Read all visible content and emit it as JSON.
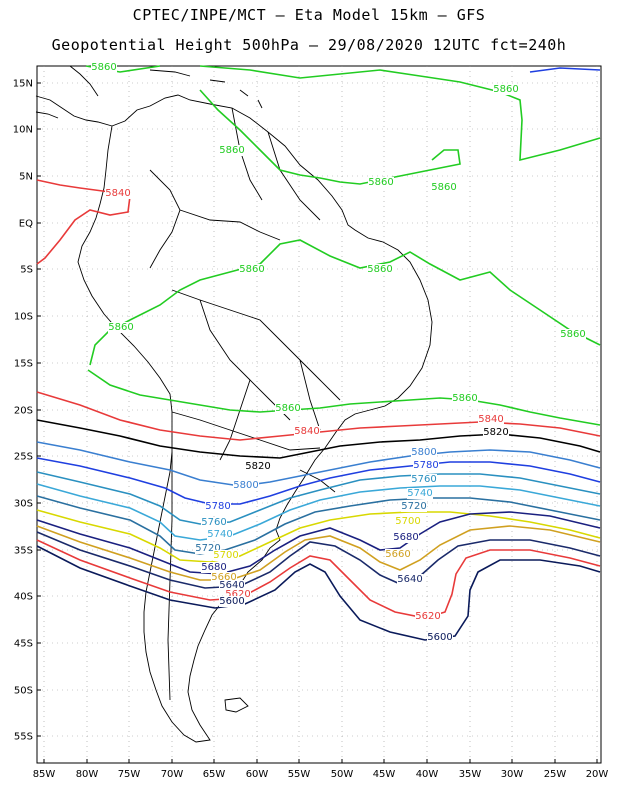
{
  "title_line1": "CPTEC/INPE/MCT —  Eta Model 15km — GFS",
  "title_line2": "Geopotential Height 500hPa — 29/08/2020 12UTC fct=240h",
  "lat_labels": [
    "15N",
    "10N",
    "5N",
    "EQ",
    "5S",
    "10S",
    "15S",
    "20S",
    "25S",
    "30S",
    "35S",
    "40S",
    "45S",
    "50S",
    "55S"
  ],
  "lon_labels": [
    "85W",
    "80W",
    "75W",
    "70W",
    "65W",
    "60W",
    "55W",
    "50W",
    "45W",
    "40W",
    "35W",
    "30W",
    "25W",
    "20W"
  ],
  "contour_labels": [
    {
      "text": "5860",
      "color": "#22cc22"
    },
    {
      "text": "5860",
      "color": "#22cc22"
    },
    {
      "text": "5860",
      "color": "#22cc22"
    },
    {
      "text": "5860",
      "color": "#22cc22"
    },
    {
      "text": "5860",
      "color": "#22cc22"
    },
    {
      "text": "5860",
      "color": "#22cc22"
    },
    {
      "text": "5860",
      "color": "#22cc22"
    },
    {
      "text": "5860",
      "color": "#22cc22"
    },
    {
      "text": "5860",
      "color": "#22cc22"
    },
    {
      "text": "5860",
      "color": "#22cc22"
    },
    {
      "text": "5860",
      "color": "#22cc22"
    },
    {
      "text": "5840",
      "color": "#e83a3a"
    },
    {
      "text": "5840",
      "color": "#e83a3a"
    },
    {
      "text": "5840",
      "color": "#e83a3a"
    },
    {
      "text": "5820",
      "color": "#000000"
    },
    {
      "text": "5820",
      "color": "#000000"
    },
    {
      "text": "5800",
      "color": "#3a7fd0"
    },
    {
      "text": "5800",
      "color": "#3a7fd0"
    },
    {
      "text": "5780",
      "color": "#1f3fe0"
    },
    {
      "text": "5780",
      "color": "#1f3fe0"
    },
    {
      "text": "5760",
      "color": "#2a90c0"
    },
    {
      "text": "5760",
      "color": "#2a90c0"
    },
    {
      "text": "5740",
      "color": "#3aa8d8"
    },
    {
      "text": "5740",
      "color": "#3aa8d8"
    },
    {
      "text": "5720",
      "color": "#2a70a0"
    },
    {
      "text": "5720",
      "color": "#2a70a0"
    },
    {
      "text": "5700",
      "color": "#d8d800"
    },
    {
      "text": "5700",
      "color": "#d8d800"
    },
    {
      "text": "5680",
      "color": "#1a2080"
    },
    {
      "text": "5680",
      "color": "#1a2080"
    },
    {
      "text": "5660",
      "color": "#d0a020"
    },
    {
      "text": "5660",
      "color": "#d0a020"
    },
    {
      "text": "5640",
      "color": "#1a2a6a"
    },
    {
      "text": "5640",
      "color": "#1a2a6a"
    },
    {
      "text": "5620",
      "color": "#e83a3a"
    },
    {
      "text": "5620",
      "color": "#e83a3a"
    },
    {
      "text": "5600",
      "color": "#0a1a5a"
    },
    {
      "text": "5600",
      "color": "#0a1a5a"
    }
  ]
}
